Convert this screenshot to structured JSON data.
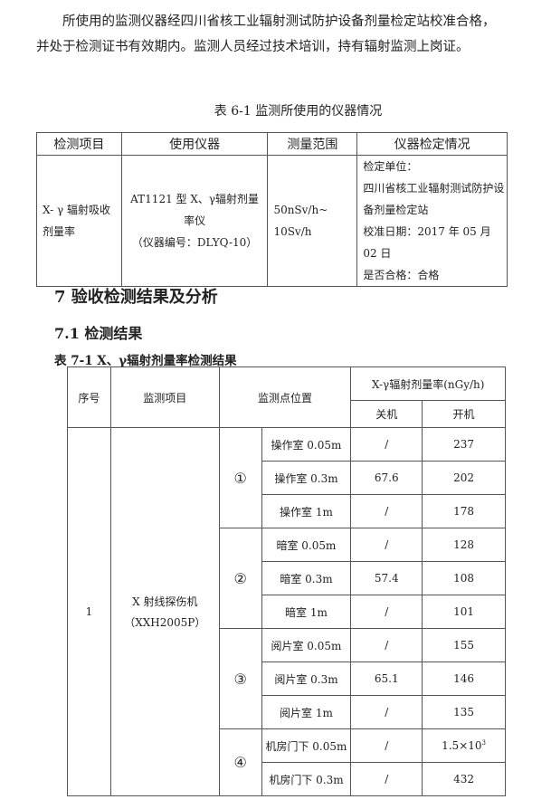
{
  "paragraph": {
    "line1": "所使用的监测仪器经四川省核工业辐射测试防护设备剂量检定站校准合格，",
    "line2": "并处于检测证书有效期内。监测人员经过技术培训，持有辐射监测上岗证。"
  },
  "table61": {
    "caption": "表 6-1    监测所使用的仪器情况",
    "headers": [
      "检测项目",
      "使用仪器",
      "测量范围",
      "仪器检定情况"
    ],
    "item": "X- γ 辐射吸收剂量率",
    "instrument": {
      "l1": "AT1121 型 X、γ辐射剂量",
      "l2": "率仪",
      "l3": "（仪器编号：DLYQ-10）"
    },
    "range": {
      "l1": "50nSv/h~",
      "l2": "10Sv/h"
    },
    "calibration": {
      "l1": "检定单位：",
      "l2": "四川省核工业辐射测试防护设",
      "l3": "备剂量检定站",
      "l4": "校准日期：2017 年 05 月 02 日",
      "l5": "是否合格：合格"
    }
  },
  "section_heading": "7 验收检测结果及分析",
  "subsection_heading": "7.1 检测结果",
  "table71": {
    "caption": "表 7-1  X、γ辐射剂量率检测结果",
    "headers": {
      "no": "序号",
      "item": "监测项目",
      "location": "监测点位置",
      "rate": "X-γ辐射剂量率(nGy/h)",
      "off": "关机",
      "on": "开机"
    },
    "no": "1",
    "item_l1": "X 射线探伤机",
    "item_l2": "（XXH2005P）",
    "groups": [
      "①",
      "②",
      "③",
      "④"
    ],
    "rows": [
      {
        "loc": "操作室 0.05m",
        "off": "/",
        "on": "237"
      },
      {
        "loc": "操作室 0.3m",
        "off": "67.6",
        "on": "202"
      },
      {
        "loc": "操作室 1m",
        "off": "/",
        "on": "178"
      },
      {
        "loc": "暗室  0.05m",
        "off": "/",
        "on": "128"
      },
      {
        "loc": "暗室  0.3m",
        "off": "57.4",
        "on": "108"
      },
      {
        "loc": "暗室  1m",
        "off": "/",
        "on": "101"
      },
      {
        "loc": "阅片室 0.05m",
        "off": "/",
        "on": "155"
      },
      {
        "loc": "阅片室 0.3m",
        "off": "65.1",
        "on": "146"
      },
      {
        "loc": "阅片室  1m",
        "off": "/",
        "on": "135"
      },
      {
        "loc": "机房门下 0.05m",
        "off": "/",
        "on": "1.5×10",
        "on_sup": "3"
      },
      {
        "loc": "机房门下  0.3m",
        "off": "/",
        "on": "432"
      }
    ]
  }
}
